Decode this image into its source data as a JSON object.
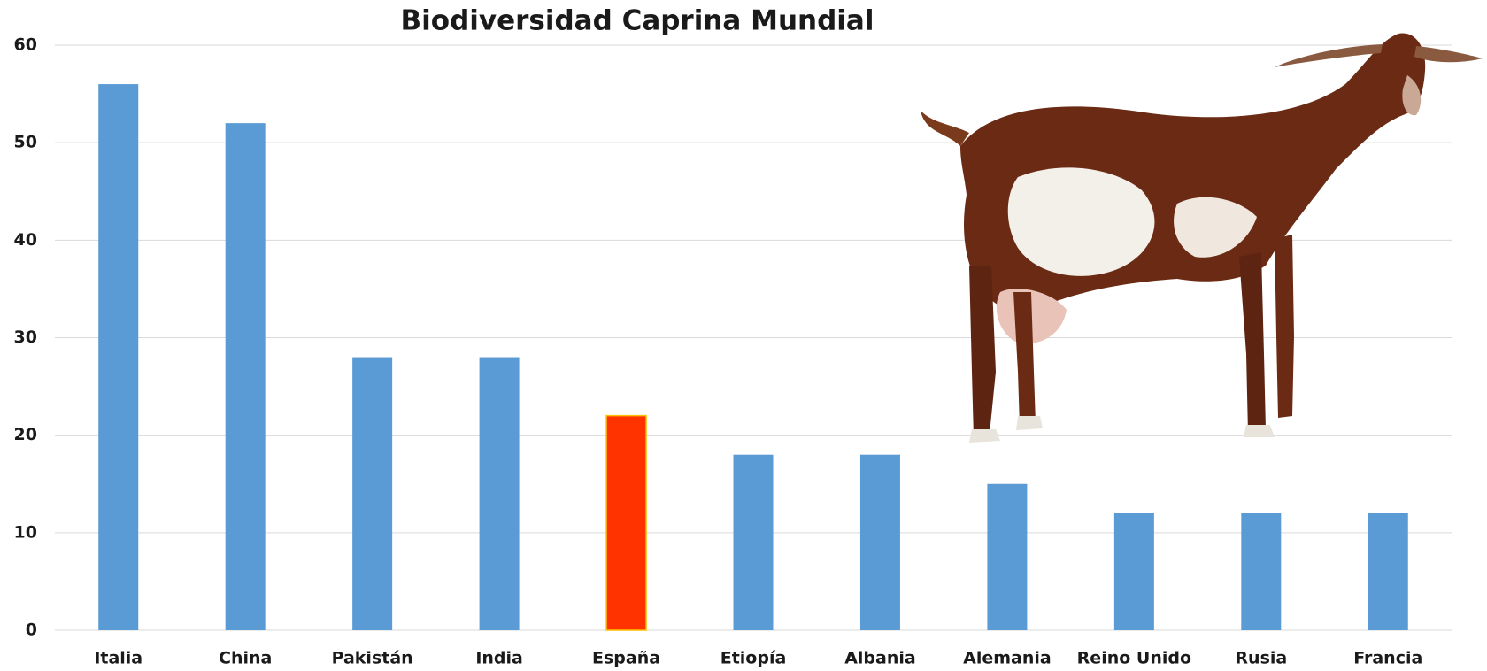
{
  "chart_data": {
    "type": "bar",
    "title": "Biodiversidad Caprina Mundial",
    "categories": [
      "Italia",
      "China",
      "Pakistán",
      "India",
      "España",
      "Etiopía",
      "Albania",
      "Alemania",
      "Reino Unido",
      "Rusia",
      "Francia"
    ],
    "values": [
      56,
      52,
      28,
      28,
      22,
      18,
      18,
      15,
      12,
      12,
      12
    ],
    "colors": [
      "#5b9bd5",
      "#5b9bd5",
      "#5b9bd5",
      "#5b9bd5",
      "#ff3300",
      "#5b9bd5",
      "#5b9bd5",
      "#5b9bd5",
      "#5b9bd5",
      "#5b9bd5",
      "#5b9bd5"
    ],
    "ylim": [
      0,
      60
    ],
    "yticks": [
      0,
      10,
      20,
      30,
      40,
      50,
      60
    ],
    "grid": true
  }
}
